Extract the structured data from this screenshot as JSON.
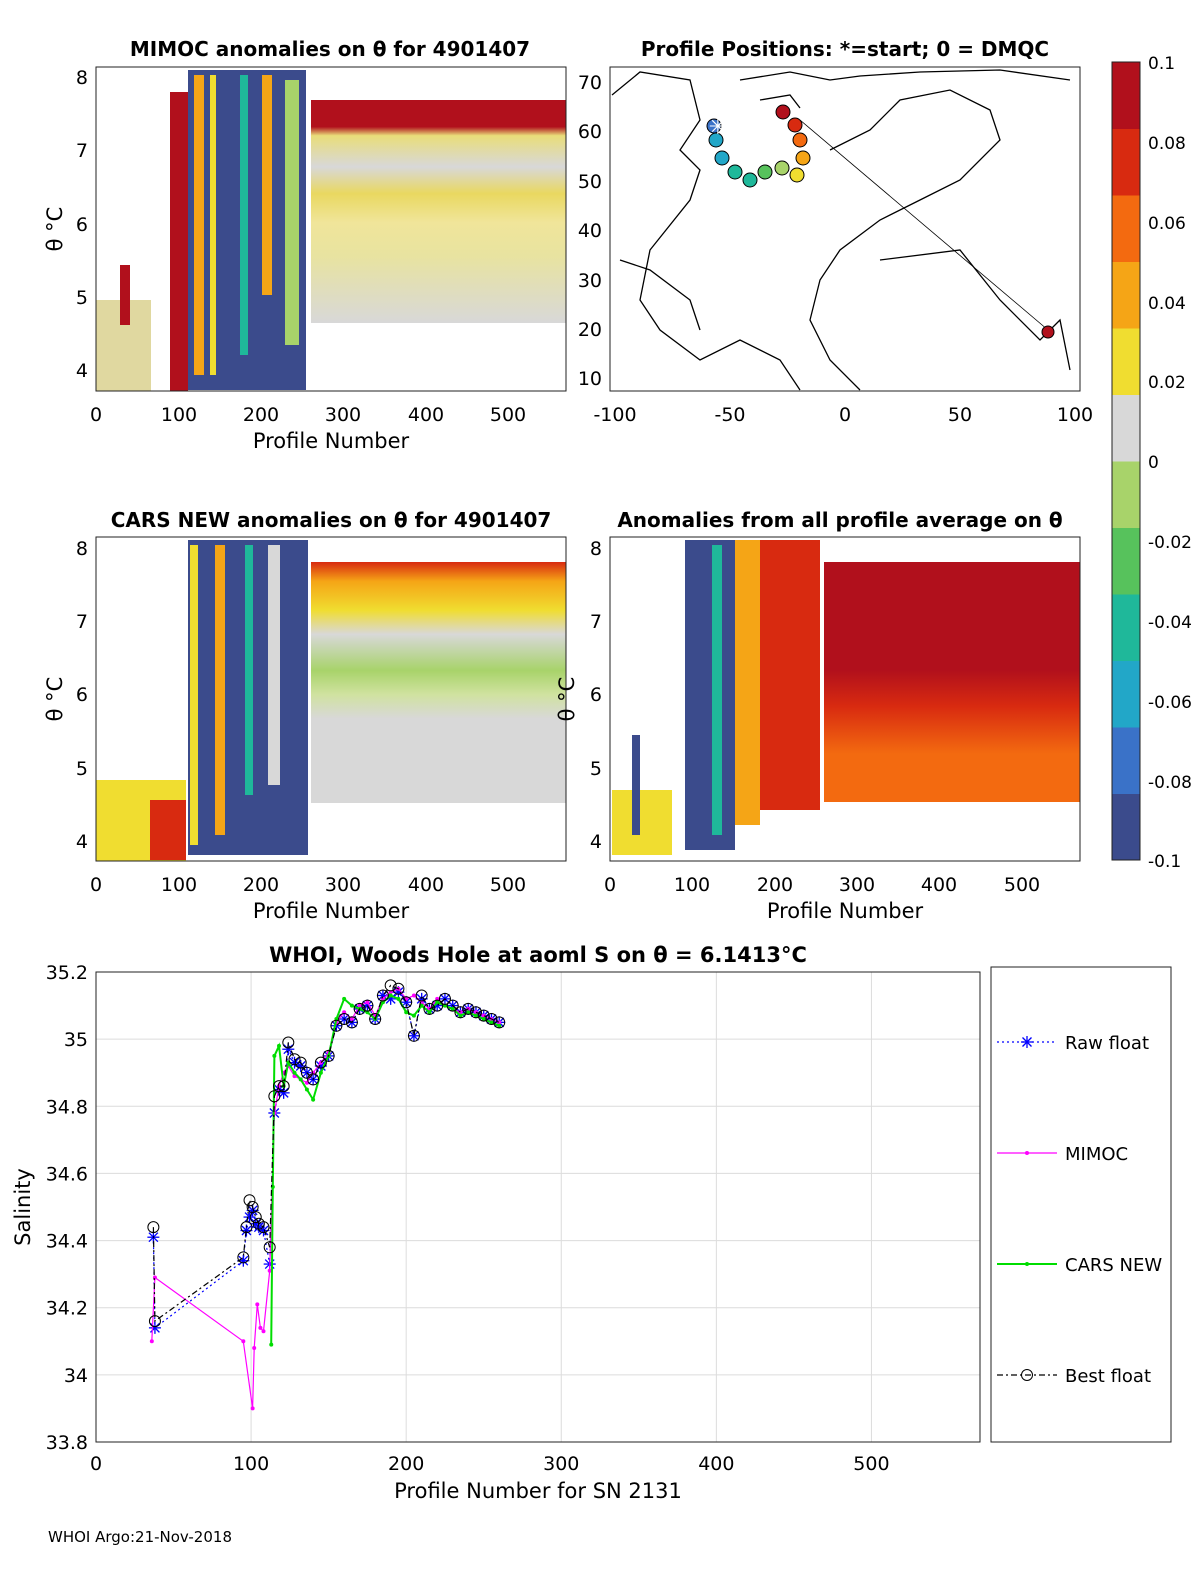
{
  "colorbar": {
    "ticks": [
      "0.1",
      "0.08",
      "0.06",
      "0.04",
      "0.02",
      "0",
      "-0.02",
      "-0.04",
      "-0.06",
      "-0.08",
      "-0.1"
    ],
    "colors": [
      "#3b4b8c",
      "#3a72c8",
      "#22a7c8",
      "#1fb89a",
      "#57c25c",
      "#a8d36a",
      "#d8d8d8",
      "#f0dd30",
      "#f5a516",
      "#f36a10",
      "#d82a10",
      "#b1101c"
    ]
  },
  "panels": {
    "mimoc": {
      "title": "MIMOC anomalies on θ  for 4901407",
      "xlabel": "Profile Number",
      "ylabel": "θ °C",
      "xticks": [
        "0",
        "100",
        "200",
        "300",
        "400",
        "500"
      ],
      "yticks": [
        "8",
        "7",
        "6",
        "5",
        "4"
      ]
    },
    "map": {
      "title": "Profile Positions: *=start; 0 = DMQC",
      "xticks": [
        "-100",
        "-50",
        "0",
        "50",
        "100"
      ],
      "yticks": [
        "70",
        "60",
        "50",
        "40",
        "30",
        "20",
        "10"
      ]
    },
    "cars": {
      "title": "CARS NEW anomalies on θ for 4901407",
      "xlabel": "Profile Number",
      "ylabel": "θ °C",
      "xticks": [
        "0",
        "100",
        "200",
        "300",
        "400",
        "500"
      ],
      "yticks": [
        "8",
        "7",
        "6",
        "5",
        "4"
      ]
    },
    "avg": {
      "title": "Anomalies from all profile average on θ",
      "xlabel": "Profile Number",
      "ylabel": "θ °C",
      "xticks": [
        "0",
        "100",
        "200",
        "300",
        "400",
        "500"
      ],
      "yticks": [
        "8",
        "7",
        "6",
        "5",
        "4"
      ]
    }
  },
  "chart_data": {
    "type": "line",
    "title": "WHOI, Woods Hole at aoml S on θ = 6.1413°C",
    "xlabel": "Profile Number for SN 2131",
    "ylabel": "Salinity",
    "xlim": [
      0,
      570
    ],
    "ylim": [
      33.8,
      35.2
    ],
    "xticks": [
      0,
      100,
      200,
      300,
      400,
      500
    ],
    "yticks": [
      35.2,
      35,
      34.8,
      34.6,
      34.4,
      34.2,
      34,
      33.8
    ],
    "legend_position": "right",
    "series": [
      {
        "name": "Raw float",
        "color": "#0000ff",
        "marker": "*",
        "x": [
          37,
          38,
          95,
          97,
          99,
          101,
          103,
          105,
          108,
          112,
          115,
          118,
          121,
          124,
          128,
          132,
          136,
          140,
          145,
          150,
          155,
          160,
          165,
          170,
          175,
          180,
          185,
          190,
          195,
          200,
          205,
          210,
          215,
          220,
          225,
          230,
          235,
          240,
          245,
          250,
          255,
          260
        ],
        "y": [
          34.41,
          34.14,
          34.34,
          34.43,
          34.47,
          34.49,
          34.45,
          34.44,
          34.43,
          34.33,
          34.78,
          34.85,
          34.84,
          34.97,
          34.93,
          34.92,
          34.9,
          34.88,
          34.92,
          34.95,
          35.04,
          35.06,
          35.05,
          35.09,
          35.1,
          35.06,
          35.13,
          35.12,
          35.14,
          35.11,
          35.01,
          35.12,
          35.09,
          35.1,
          35.12,
          35.1,
          35.08,
          35.09,
          35.08,
          35.07,
          35.06,
          35.05
        ]
      },
      {
        "name": "MIMOC",
        "color": "#ff00ff",
        "marker": ".",
        "x": [
          36,
          38,
          95,
          101,
          102,
          104,
          106,
          108,
          112,
          115,
          118,
          121,
          124,
          128,
          132,
          136,
          140,
          145,
          150,
          155,
          160,
          165,
          170,
          175,
          180,
          185,
          190,
          195,
          200,
          205,
          210,
          215,
          220,
          225,
          230,
          235,
          240,
          245,
          250,
          255,
          260
        ],
        "y": [
          34.1,
          34.29,
          34.1,
          33.9,
          34.08,
          34.21,
          34.14,
          34.13,
          34.31,
          34.78,
          34.86,
          34.9,
          34.92,
          34.89,
          34.88,
          34.87,
          34.9,
          34.93,
          34.96,
          35.05,
          35.08,
          35.06,
          35.1,
          35.11,
          35.07,
          35.12,
          35.14,
          35.15,
          35.12,
          35.13,
          35.11,
          35.09,
          35.12,
          35.1,
          35.09,
          35.08,
          35.09,
          35.08,
          35.07,
          35.06,
          35.05
        ]
      },
      {
        "name": "CARS NEW",
        "color": "#00dd00",
        "marker": ".",
        "x": [
          113,
          114,
          115,
          118,
          121,
          124,
          128,
          132,
          136,
          140,
          145,
          150,
          155,
          160,
          165,
          170,
          175,
          180,
          185,
          190,
          195,
          200,
          205,
          210,
          215,
          220,
          225,
          230,
          235,
          240,
          245,
          250,
          255,
          260
        ],
        "y": [
          34.09,
          34.56,
          34.95,
          34.98,
          34.86,
          34.93,
          34.9,
          34.88,
          34.85,
          34.82,
          34.9,
          34.95,
          35.06,
          35.12,
          35.1,
          35.09,
          35.08,
          35.06,
          35.11,
          35.13,
          35.12,
          35.08,
          35.07,
          35.1,
          35.08,
          35.11,
          35.1,
          35.09,
          35.07,
          35.08,
          35.07,
          35.06,
          35.05,
          35.04
        ]
      },
      {
        "name": "Best float",
        "color": "#000000",
        "marker": "o",
        "x": [
          37,
          38,
          95,
          97,
          99,
          101,
          103,
          105,
          108,
          112,
          115,
          118,
          121,
          124,
          128,
          132,
          136,
          140,
          145,
          150,
          155,
          160,
          165,
          170,
          175,
          180,
          185,
          190,
          195,
          200,
          205,
          210,
          215,
          220,
          225,
          230,
          235,
          240,
          245,
          250,
          255,
          260
        ],
        "y": [
          34.44,
          34.16,
          34.35,
          34.44,
          34.52,
          34.5,
          34.47,
          34.45,
          34.44,
          34.38,
          34.83,
          34.86,
          34.86,
          34.99,
          34.94,
          34.93,
          34.9,
          34.88,
          34.93,
          34.95,
          35.04,
          35.06,
          35.05,
          35.09,
          35.1,
          35.06,
          35.13,
          35.16,
          35.15,
          35.11,
          35.01,
          35.13,
          35.09,
          35.1,
          35.12,
          35.1,
          35.08,
          35.09,
          35.08,
          35.07,
          35.06,
          35.05
        ]
      }
    ]
  },
  "footer": "WHOI Argo:21-Nov-2018"
}
